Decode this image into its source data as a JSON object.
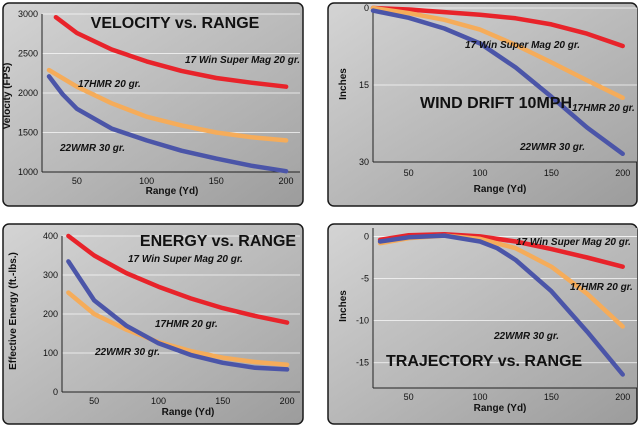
{
  "colors": {
    "red": "#e8232a",
    "orange": "#f5ac5a",
    "blue": "#4b55a8",
    "panel_light": "#d2d2d2",
    "panel_dark": "#9a9a9a"
  },
  "chart_data": [
    {
      "type": "line",
      "title": "VELOCITY vs. RANGE",
      "xlabel": "Range (Yd)",
      "ylabel": "Velocity (FPS)",
      "xlim": [
        25,
        210
      ],
      "ylim": [
        1000,
        3000
      ],
      "xticks": [
        "50",
        "100",
        "150",
        "200"
      ],
      "yticks": [
        "1000",
        "1500",
        "2000",
        "2500",
        "3000"
      ],
      "grid": "horizontal",
      "series": [
        {
          "name": "17 Win Super Mag 20 gr.",
          "color": "red",
          "x": [
            35,
            50,
            75,
            100,
            125,
            150,
            175,
            200
          ],
          "y": [
            2960,
            2760,
            2550,
            2400,
            2280,
            2190,
            2130,
            2080
          ]
        },
        {
          "name": "17HMR 20 gr.",
          "color": "orange",
          "x": [
            30,
            50,
            75,
            100,
            125,
            150,
            175,
            200
          ],
          "y": [
            2290,
            2080,
            1870,
            1700,
            1590,
            1500,
            1440,
            1400
          ]
        },
        {
          "name": "22WMR 30 gr.",
          "color": "blue",
          "x": [
            30,
            40,
            50,
            75,
            100,
            125,
            150,
            175,
            200
          ],
          "y": [
            2210,
            1980,
            1800,
            1550,
            1400,
            1270,
            1170,
            1080,
            1010
          ]
        }
      ]
    },
    {
      "type": "line",
      "title": "WIND DRIFT 10MPH",
      "xlabel": "Range (Yd)",
      "ylabel": "Inches",
      "xlim": [
        25,
        210
      ],
      "ylim": [
        0,
        30
      ],
      "yaxis_inverted": true,
      "xticks": [
        "50",
        "100",
        "150",
        "200"
      ],
      "yticks": [
        "0",
        "15",
        "30"
      ],
      "grid": "horizontal",
      "series": [
        {
          "name": "17 Win Super Mag 20 gr.",
          "color": "red",
          "x": [
            25,
            50,
            75,
            100,
            125,
            150,
            175,
            200
          ],
          "y": [
            0,
            0.3,
            0.8,
            1.3,
            2.0,
            3.2,
            5.0,
            7.4
          ]
        },
        {
          "name": "17HMR 20 gr.",
          "color": "orange",
          "x": [
            25,
            50,
            75,
            100,
            125,
            150,
            175,
            200
          ],
          "y": [
            0,
            1.0,
            2.3,
            4.2,
            7.2,
            10.6,
            14.1,
            17.5
          ]
        },
        {
          "name": "22WMR 30 gr.",
          "color": "blue",
          "x": [
            25,
            50,
            75,
            100,
            125,
            150,
            175,
            200
          ],
          "y": [
            0.5,
            1.9,
            4.0,
            6.9,
            11.6,
            17.3,
            23.3,
            28.4
          ]
        }
      ]
    },
    {
      "type": "line",
      "title": "ENERGY vs. RANGE",
      "xlabel": "Range (Yd)",
      "ylabel": "Effective Energy (ft.-lbs.)",
      "xlim": [
        25,
        210
      ],
      "ylim": [
        0,
        400
      ],
      "xticks": [
        "50",
        "100",
        "150",
        "200"
      ],
      "yticks": [
        "0",
        "100",
        "200",
        "300",
        "400"
      ],
      "grid": "horizontal",
      "series": [
        {
          "name": "17 Win Super Mag 20 gr.",
          "color": "red",
          "x": [
            30,
            50,
            75,
            100,
            125,
            150,
            175,
            200
          ],
          "y": [
            400,
            350,
            305,
            270,
            240,
            215,
            195,
            178
          ]
        },
        {
          "name": "17HMR 20 gr.",
          "color": "orange",
          "x": [
            30,
            50,
            75,
            100,
            125,
            150,
            175,
            200
          ],
          "y": [
            255,
            200,
            160,
            128,
            105,
            88,
            77,
            70
          ]
        },
        {
          "name": "22WMR 30 gr.",
          "color": "blue",
          "x": [
            30,
            50,
            75,
            100,
            125,
            150,
            175,
            200
          ],
          "y": [
            335,
            235,
            170,
            125,
            95,
            75,
            62,
            58
          ]
        }
      ]
    },
    {
      "type": "line",
      "title": "TRAJECTORY vs. RANGE",
      "xlabel": "Range (Yd)",
      "ylabel": "Inches",
      "xlim": [
        25,
        210
      ],
      "ylim": [
        -18,
        1
      ],
      "xticks": [
        "50",
        "100",
        "150",
        "200"
      ],
      "yticks": [
        "0",
        "-5",
        "-10",
        "-15"
      ],
      "grid": "horizontal",
      "series": [
        {
          "name": "17 Win Super Mag 20 gr.",
          "color": "red",
          "x": [
            30,
            50,
            75,
            100,
            125,
            150,
            175,
            200
          ],
          "y": [
            -0.4,
            0.15,
            0.25,
            0,
            -0.6,
            -1.5,
            -2.5,
            -3.6
          ]
        },
        {
          "name": "17HMR 20 gr.",
          "color": "orange",
          "x": [
            30,
            50,
            75,
            100,
            125,
            150,
            175,
            200
          ],
          "y": [
            -0.8,
            -0.2,
            0.1,
            -0.3,
            -1.4,
            -3.6,
            -6.8,
            -10.7
          ]
        },
        {
          "name": "22WMR 30 gr.",
          "color": "blue",
          "x": [
            30,
            50,
            75,
            100,
            112,
            125,
            150,
            175,
            200
          ],
          "y": [
            -0.6,
            -0.1,
            0.1,
            -0.6,
            -1.4,
            -2.8,
            -6.5,
            -11.3,
            -16.4
          ]
        }
      ]
    }
  ]
}
